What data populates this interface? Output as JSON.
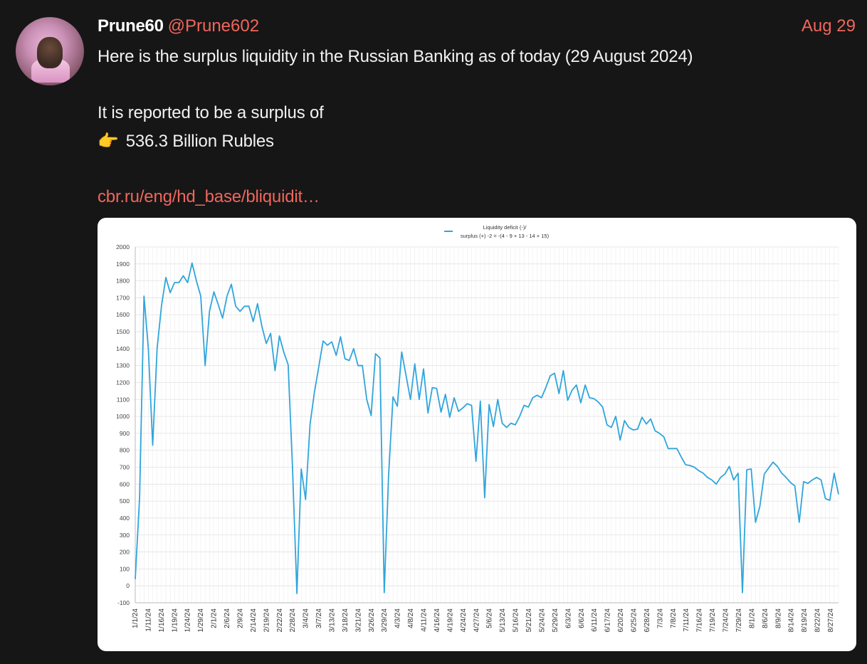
{
  "post": {
    "display_name": "Prune60",
    "handle": "@Prune602",
    "date": "Aug 29",
    "line1": "Here is the surplus liquidity in the Russian Banking as of today (29 August 2024)",
    "line2": "It is reported to be a surplus of",
    "line3_icon": "pointing-hand-icon",
    "line3_emoji": "👉",
    "line3": "536.3 Billion Rubles",
    "link": "cbr.ru/eng/hd_base/bliquidit…"
  },
  "colors": {
    "background": "#161616",
    "accent": "#f0665c",
    "series": "#2fa5dc"
  },
  "chart_data": {
    "type": "line",
    "legend": [
      "Liquidity deficit (-)/",
      "surplus (+) -2 = -(4 - 9 + 13 - 14 + 15)"
    ],
    "legend_position": "top",
    "grid": true,
    "ylim": [
      -100,
      2000
    ],
    "yticks": [
      -100,
      0,
      100,
      200,
      300,
      400,
      500,
      600,
      700,
      800,
      900,
      1000,
      1100,
      1200,
      1300,
      1400,
      1500,
      1600,
      1700,
      1800,
      1900,
      2000
    ],
    "xtick_labels": [
      "1/1/24",
      "1/11/24",
      "1/16/24",
      "1/19/24",
      "1/24/24",
      "1/29/24",
      "2/1/24",
      "2/6/24",
      "2/9/24",
      "2/14/24",
      "2/19/24",
      "2/22/24",
      "2/28/24",
      "3/4/24",
      "3/7/24",
      "3/13/24",
      "3/18/24",
      "3/21/24",
      "3/26/24",
      "3/29/24",
      "4/3/24",
      "4/8/24",
      "4/11/24",
      "4/16/24",
      "4/19/24",
      "4/24/24",
      "4/27/24",
      "5/6/24",
      "5/13/24",
      "5/16/24",
      "5/21/24",
      "5/24/24",
      "5/29/24",
      "6/3/24",
      "6/6/24",
      "6/11/24",
      "6/17/24",
      "6/20/24",
      "6/25/24",
      "6/28/24",
      "7/3/24",
      "7/8/24",
      "7/11/24",
      "7/16/24",
      "7/19/24",
      "7/24/24",
      "7/29/24",
      "8/1/24",
      "8/6/24",
      "8/9/24",
      "8/14/24",
      "8/19/24",
      "8/22/24",
      "8/27/24"
    ],
    "series": [
      {
        "values": [
          40,
          520,
          1710,
          1400,
          830,
          1400,
          1650,
          1820,
          1730,
          1790,
          1790,
          1830,
          1790,
          1905,
          1800,
          1710,
          1300,
          1620,
          1735,
          1660,
          1580,
          1710,
          1780,
          1650,
          1620,
          1650,
          1650,
          1560,
          1665,
          1530,
          1430,
          1490,
          1270,
          1475,
          1380,
          1305,
          700,
          -45,
          690,
          510,
          950,
          1140,
          1290,
          1445,
          1420,
          1440,
          1360,
          1470,
          1340,
          1330,
          1400,
          1300,
          1300,
          1100,
          1005,
          1370,
          1345,
          -40,
          650,
          1115,
          1060,
          1380,
          1240,
          1100,
          1310,
          1100,
          1280,
          1020,
          1170,
          1165,
          1025,
          1130,
          995,
          1110,
          1030,
          1050,
          1075,
          1065,
          735,
          1090,
          520,
          1070,
          940,
          1100,
          960,
          935,
          960,
          950,
          1000,
          1065,
          1055,
          1110,
          1125,
          1110,
          1170,
          1240,
          1255,
          1135,
          1270,
          1095,
          1155,
          1185,
          1080,
          1185,
          1110,
          1105,
          1085,
          1055,
          950,
          935,
          1000,
          860,
          975,
          935,
          920,
          925,
          995,
          955,
          985,
          915,
          900,
          880,
          810,
          810,
          810,
          760,
          715,
          710,
          700,
          680,
          665,
          640,
          625,
          600,
          640,
          660,
          705,
          625,
          665,
          -40,
          685,
          690,
          375,
          470,
          660,
          695,
          730,
          705,
          665,
          640,
          610,
          590,
          375,
          615,
          605,
          625,
          640,
          625,
          515,
          505,
          665,
          540
        ]
      }
    ]
  }
}
